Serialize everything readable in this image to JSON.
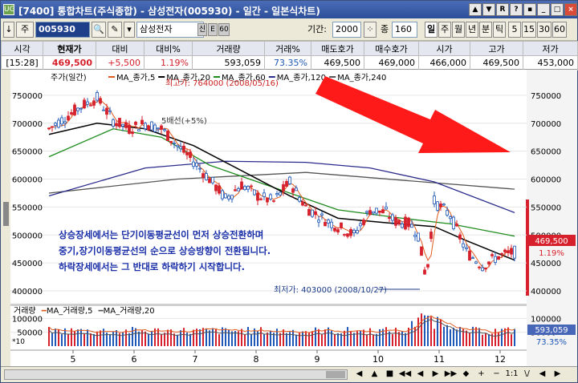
{
  "window": {
    "title": "[7400] 통합차트(주식종합) - 삼성전자(005930) - 일간 - 일본식차트)",
    "app_icon": "UG",
    "controls": [
      "▲",
      "▼",
      "R",
      "?",
      "▪",
      "_",
      "□",
      "×"
    ]
  },
  "toolbar": {
    "code": "005930",
    "stock_name": "삼성전자",
    "flags": [
      "신",
      "E",
      "60"
    ],
    "period_label": "기간:",
    "period_value": "2000",
    "count_label": "종",
    "count_value": "160",
    "intervals": [
      "일",
      "주",
      "월",
      "년",
      "분",
      "틱"
    ],
    "minutes": [
      "5",
      "15",
      "30",
      "60"
    ]
  },
  "quote": {
    "headers": [
      "시각",
      "현재가",
      "대비",
      "대비%",
      "거래량",
      "거래%",
      "매도호가",
      "매수호가",
      "시가",
      "고가",
      "저가"
    ],
    "values": [
      "[15:28]",
      "469,500",
      "+5,500",
      "1.19%",
      "593,059",
      "73.35%",
      "469,500",
      "469,000",
      "466,000",
      "469,500",
      "453,000"
    ]
  },
  "price_panel": {
    "legend": [
      {
        "name": "주가(일간)",
        "color": "#000000"
      },
      {
        "name": "MA_종가,5",
        "color": "#e05a1c"
      },
      {
        "name": "MA_종가,20",
        "color": "#000000"
      },
      {
        "name": "MA_종가,60",
        "color": "#1d8c1d"
      },
      {
        "name": "MA_종가,120",
        "color": "#2b2b8c"
      },
      {
        "name": "MA_종가,240",
        "color": "#555555"
      }
    ],
    "high_note": "최고가: 764000 (2008/05/16)",
    "low_note": "최저가: 403000 (2008/10/27)",
    "marker_note": "5배선(+5%)",
    "current_price": "469,500",
    "current_pct": "1.19%",
    "y_ticks": [
      "750000",
      "700000",
      "650000",
      "600000",
      "550000",
      "500000",
      "450000",
      "400000"
    ],
    "left_ticks": [
      "750000",
      "700000",
      "650000",
      "600000",
      "550000",
      "500000",
      "450000",
      "400000"
    ],
    "annotation": [
      "상승장세에서는 단기이동평균선이 먼저 상승전환하며",
      "중기,장기이동평균선의 순으로 상승방향이 전환됩니다.",
      "하락장세에서는 그 반대로 하락하기 시작합니다."
    ]
  },
  "volume_panel": {
    "legend": [
      "거래량",
      "MA_거래량,5",
      "MA_거래량,20"
    ],
    "y_ticks": [
      "100000",
      "50000"
    ],
    "unit": "*10",
    "left_ticks": [
      "100000",
      "50000"
    ],
    "current_volume": "593,059",
    "current_pct": "73.35%"
  },
  "x_ticks": [
    "5",
    "6",
    "7",
    "8",
    "9",
    "10",
    "11",
    "12"
  ],
  "bottom_nav": [
    "◀",
    "▲",
    "■",
    "◀◀",
    "◀",
    "▶",
    "▶▶",
    "◆",
    "+",
    "−",
    "1:1",
    "\\/",
    "◀",
    "▶"
  ],
  "colors": {
    "up": "#d6202b",
    "down": "#1f58b8",
    "ma5": "#e05a1c",
    "ma20": "#000000",
    "ma60": "#1d8c1d",
    "ma120": "#2b2b8c",
    "ma240": "#555555",
    "arrow": "#ff0000"
  },
  "chart_data": {
    "type": "candlestick",
    "x_months": [
      "5",
      "6",
      "7",
      "8",
      "9",
      "10",
      "11",
      "12"
    ],
    "ylim": [
      380000,
      790000
    ],
    "close_points": [
      [
        0,
        690000
      ],
      [
        10,
        710000
      ],
      [
        20,
        730000
      ],
      [
        30,
        745000
      ],
      [
        40,
        705000
      ],
      [
        50,
        690000
      ],
      [
        60,
        700000
      ],
      [
        70,
        690000
      ],
      [
        80,
        660000
      ],
      [
        90,
        632000
      ],
      [
        100,
        600000
      ],
      [
        110,
        565000
      ],
      [
        120,
        590000
      ],
      [
        130,
        570000
      ],
      [
        140,
        560000
      ],
      [
        150,
        595000
      ],
      [
        160,
        550000
      ],
      [
        170,
        530000
      ],
      [
        180,
        515000
      ],
      [
        190,
        500000
      ],
      [
        200,
        545000
      ],
      [
        210,
        540000
      ],
      [
        215,
        525000
      ],
      [
        225,
        520000
      ],
      [
        230,
        500000
      ],
      [
        235,
        420000
      ],
      [
        240,
        560000
      ],
      [
        250,
        535000
      ],
      [
        260,
        470000
      ],
      [
        270,
        445000
      ],
      [
        280,
        462000
      ],
      [
        290,
        469500
      ]
    ],
    "ma20": [
      [
        0,
        680000
      ],
      [
        30,
        700000
      ],
      [
        60,
        690000
      ],
      [
        90,
        660000
      ],
      [
        120,
        615000
      ],
      [
        150,
        570000
      ],
      [
        180,
        530000
      ],
      [
        210,
        522000
      ],
      [
        240,
        515000
      ],
      [
        260,
        490000
      ],
      [
        290,
        455000
      ]
    ],
    "ma60": [
      [
        0,
        640000
      ],
      [
        40,
        690000
      ],
      [
        70,
        675000
      ],
      [
        100,
        625000
      ],
      [
        140,
        585000
      ],
      [
        180,
        545000
      ],
      [
        220,
        530000
      ],
      [
        250,
        520000
      ],
      [
        290,
        498000
      ]
    ],
    "ma120": [
      [
        0,
        570000
      ],
      [
        60,
        620000
      ],
      [
        110,
        632000
      ],
      [
        160,
        630000
      ],
      [
        200,
        620000
      ],
      [
        240,
        595000
      ],
      [
        290,
        540000
      ]
    ],
    "ma240": [
      [
        0,
        575000
      ],
      [
        80,
        600000
      ],
      [
        160,
        612000
      ],
      [
        220,
        598000
      ],
      [
        290,
        582000
      ]
    ]
  }
}
